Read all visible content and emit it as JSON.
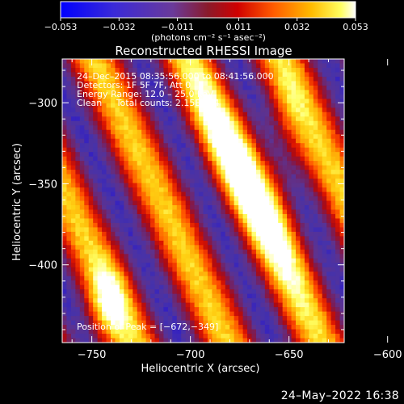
{
  "chart_data": {
    "type": "heatmap",
    "title": "Reconstructed RHESSI Image",
    "xlabel": "Heliocentric X (arcsec)",
    "ylabel": "Heliocentric Y (arcsec)",
    "xlim": [
      -765,
      -622
    ],
    "ylim": [
      -448,
      -273
    ],
    "xticks": [
      -750,
      -700,
      -650,
      -600
    ],
    "yticks": [
      -400,
      -350,
      -300
    ],
    "xtick_labels": [
      "−750",
      "−700",
      "−650",
      "−600"
    ],
    "ytick_labels": [
      "−400",
      "−350",
      "−300"
    ],
    "colorbar": {
      "min": -0.053,
      "max": 0.053,
      "ticks": [
        -0.053,
        -0.032,
        -0.011,
        0.011,
        0.032,
        0.053
      ],
      "tick_labels": [
        "−0.053",
        "−0.032",
        "−0.011",
        "0.011",
        "0.032",
        "0.053"
      ],
      "units": "(photons cm⁻² s⁻¹ asec⁻²)",
      "colors": [
        "#0000ff",
        "#4030c8",
        "#6a3a9a",
        "#a01818",
        "#ff2000",
        "#ff9a00",
        "#ffff40",
        "#ffffff"
      ]
    },
    "annotations": [
      "24–Dec–2015 08:35:56.000 to 08:41:56.000",
      "Detectors: 1F 5F 7F, Att 0",
      "Energy Range: 12.0 – 25.0 keV",
      "Clean     Total counts: 2.15E+04"
    ],
    "peak_label": "Position of Peak = [−672,−349]",
    "peak_position": [
      -672,
      -349
    ]
  },
  "footer": {
    "timestamp": "24–May–2022 16:38"
  }
}
